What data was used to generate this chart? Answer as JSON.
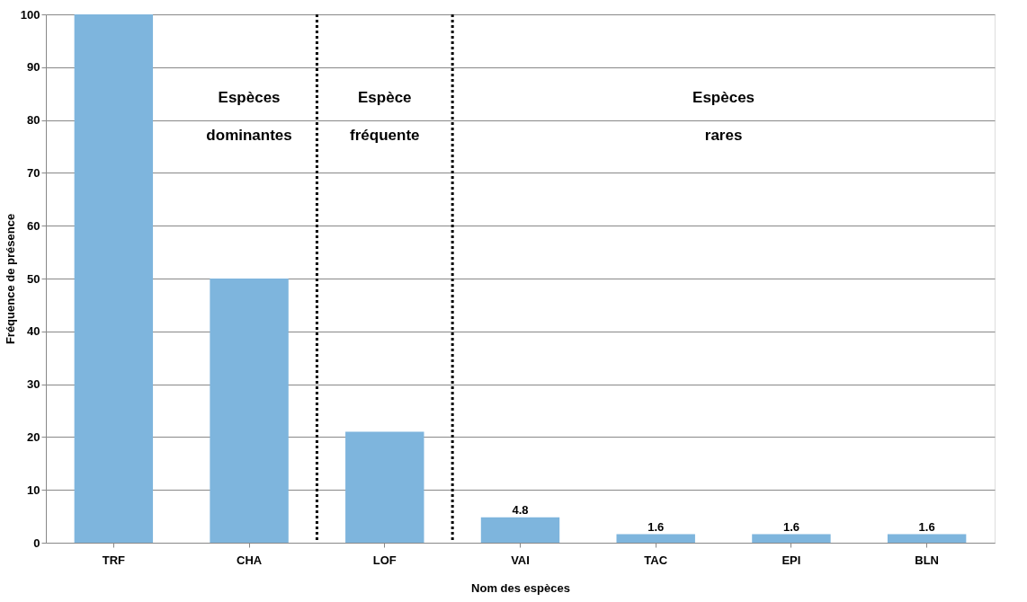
{
  "chart_data": {
    "type": "bar",
    "xlabel": "Nom des espèces",
    "ylabel": "Fréquence de présence",
    "categories": [
      "TRF",
      "CHA",
      "LOF",
      "VAI",
      "TAC",
      "EPI",
      "BLN"
    ],
    "values": [
      100,
      50,
      21,
      4.8,
      1.6,
      1.6,
      1.6
    ],
    "value_labels": [
      null,
      null,
      null,
      "4.8",
      "1.6",
      "1.6",
      "1.6"
    ],
    "color": "#7eb5dd",
    "ylim": [
      0,
      100
    ],
    "yticks": [
      0,
      10,
      20,
      30,
      40,
      50,
      60,
      70,
      80,
      90,
      100
    ],
    "grid": "y",
    "annotations": [
      "Espèces dominantes",
      "Espèce fréquente",
      "Espèces rares"
    ]
  }
}
